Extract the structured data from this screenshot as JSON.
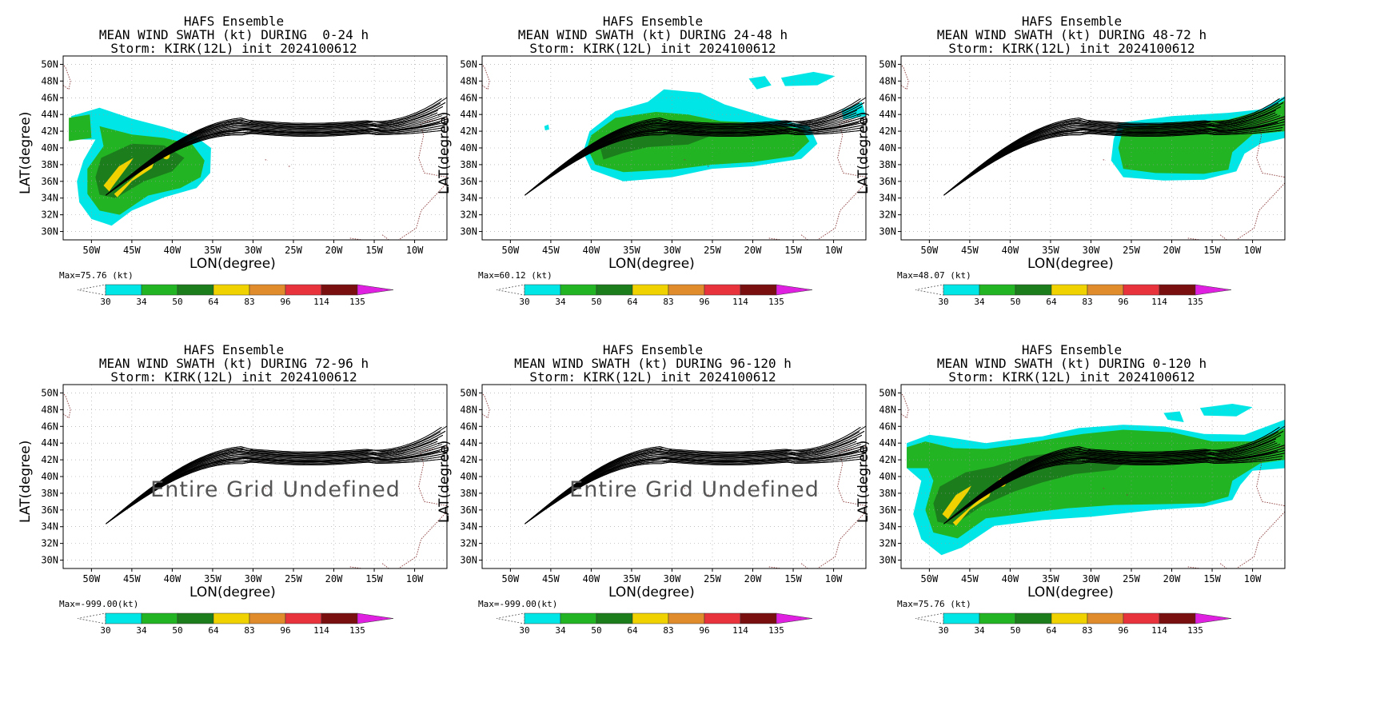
{
  "chart_data": [
    {
      "type": "heatmap",
      "title": "HAFS Ensemble",
      "subtitle": "MEAN WIND SWATH (kt) DURING  0-24 h",
      "storm": "Storm: KIRK(12L) init 2024100612",
      "xlabel": "LON(degree)",
      "ylabel": "LAT(degree)",
      "max_label": "Max=75.76 (kt)",
      "undefined_text": "",
      "swath": "0-24"
    },
    {
      "type": "heatmap",
      "title": "HAFS Ensemble",
      "subtitle": "MEAN WIND SWATH (kt) DURING 24-48 h",
      "storm": "Storm: KIRK(12L) init 2024100612",
      "xlabel": "LON(degree)",
      "ylabel": "LAT(degree)",
      "max_label": "Max=60.12 (kt)",
      "undefined_text": "",
      "swath": "24-48"
    },
    {
      "type": "heatmap",
      "title": "HAFS Ensemble",
      "subtitle": "MEAN WIND SWATH (kt) DURING 48-72 h",
      "storm": "Storm: KIRK(12L) init 2024100612",
      "xlabel": "LON(degree)",
      "ylabel": "LAT(degree)",
      "max_label": "Max=48.07 (kt)",
      "undefined_text": "",
      "swath": "48-72"
    },
    {
      "type": "heatmap",
      "title": "HAFS Ensemble",
      "subtitle": "MEAN WIND SWATH (kt) DURING 72-96 h",
      "storm": "Storm: KIRK(12L) init 2024100612",
      "xlabel": "LON(degree)",
      "ylabel": "LAT(degree)",
      "max_label": "Max=-999.00(kt)",
      "undefined_text": "Entire Grid Undefined",
      "swath": "none"
    },
    {
      "type": "heatmap",
      "title": "HAFS Ensemble",
      "subtitle": "MEAN WIND SWATH (kt) DURING 96-120 h",
      "storm": "Storm: KIRK(12L) init 2024100612",
      "xlabel": "LON(degree)",
      "ylabel": "LAT(degree)",
      "max_label": "Max=-999.00(kt)",
      "undefined_text": "Entire Grid Undefined",
      "swath": "none"
    },
    {
      "type": "heatmap",
      "title": "HAFS Ensemble",
      "subtitle": "MEAN WIND SWATH (kt) DURING 0-120 h",
      "storm": "Storm: KIRK(12L) init 2024100612",
      "xlabel": "LON(degree)",
      "ylabel": "LAT(degree)",
      "max_label": "Max=75.76 (kt)",
      "undefined_text": "",
      "swath": "0-120"
    }
  ],
  "axes": {
    "lon_ticks": [
      "50W",
      "45W",
      "40W",
      "35W",
      "30W",
      "25W",
      "20W",
      "15W",
      "10W"
    ],
    "lon_values": [
      -50,
      -45,
      -40,
      -35,
      -30,
      -25,
      -20,
      -15,
      -10
    ],
    "lat_ticks": [
      "50N",
      "48N",
      "46N",
      "44N",
      "42N",
      "40N",
      "38N",
      "36N",
      "34N",
      "32N",
      "30N"
    ],
    "lat_values": [
      50,
      48,
      46,
      44,
      42,
      40,
      38,
      36,
      34,
      32,
      30
    ],
    "xlim": [
      -53.5,
      -6
    ],
    "ylim": [
      29,
      51
    ],
    "grid": true
  },
  "colorbar": {
    "levels": [
      "30",
      "34",
      "50",
      "64",
      "83",
      "96",
      "114",
      "135"
    ],
    "colors": [
      "#00e6e6",
      "#22b422",
      "#1c7d1c",
      "#f0d200",
      "#e08c2c",
      "#e8323c",
      "#7a0f0f",
      "#e020e0"
    ]
  },
  "track_colors": {
    "tracks": "#000000",
    "coast": "#8b3a3a"
  }
}
